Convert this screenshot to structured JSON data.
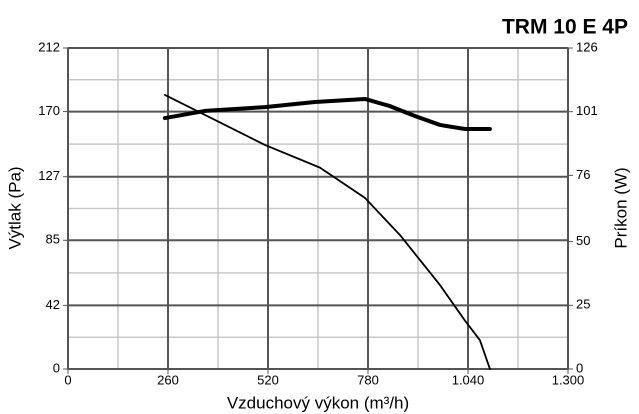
{
  "chart_data": {
    "type": "line",
    "title": "TRM 10 E 4P",
    "x_label": "Vzduchový výkon (m³/h)",
    "y_label": "Výtlak (Pa)",
    "y2_label": "Príkon (W)",
    "xlim": [
      0,
      1300
    ],
    "xticks": [
      0,
      260,
      520,
      780,
      {
        "value": 1040,
        "label": "1.040"
      },
      {
        "value": 1300,
        "label": "1.300"
      }
    ],
    "ylim": [
      0,
      212
    ],
    "yticks": [
      0,
      42,
      85,
      127,
      170,
      212
    ],
    "y2lim": [
      0,
      126
    ],
    "y2ticks": [
      0,
      25,
      50,
      76,
      101,
      126
    ],
    "grid": true,
    "series": [
      {
        "color": "#000000",
        "axis": "y",
        "x": [
          252,
          512,
          655,
          772,
          863,
          967,
          1032,
          1071,
          1097
        ],
        "values": [
          181,
          148,
          133,
          113,
          88.5,
          55.5,
          32,
          19,
          0
        ]
      },
      {
        "color": "#000000",
        "axis": "y2",
        "x": [
          252,
          356,
          512,
          642,
          772,
          837,
          902,
          967,
          1032,
          1097
        ],
        "values": [
          98.5,
          101.3,
          102.8,
          104.8,
          106,
          103.2,
          99.3,
          95.8,
          94.2,
          94.2
        ]
      }
    ]
  }
}
